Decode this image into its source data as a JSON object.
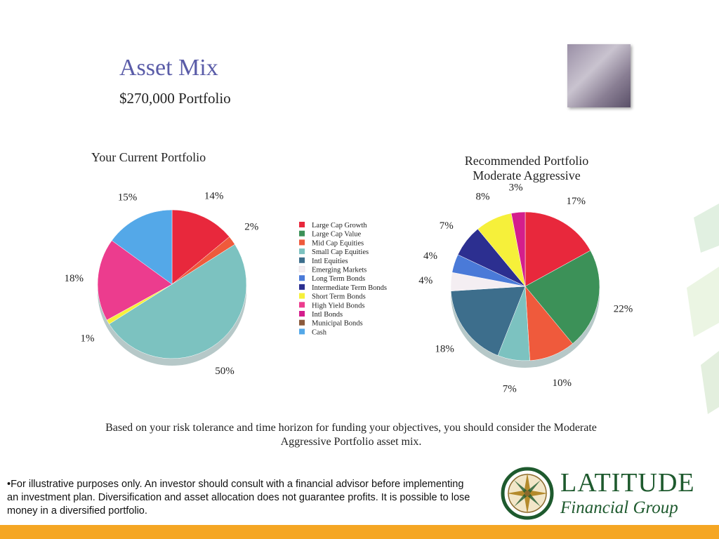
{
  "slide": {
    "title": "Asset Mix",
    "subtitle": "$270,000 Portfolio",
    "conclusion": "Based on your risk tolerance and time horizon for funding your objectives, you should consider the Moderate Aggressive Portfolio asset mix.",
    "disclaimer": "•For illustrative purposes only. An investor should consult with a financial advisor before implementing an investment plan. Diversification and asset allocation does not guarantee profits. It is possible to lose money in a diversified portfolio.",
    "logo_name": "LATITUDE",
    "logo_sub": "Financial Group",
    "accent_color": "#f5a623",
    "brand_color": "#1e5a2e"
  },
  "legend": [
    {
      "label": "Large Cap Growth",
      "color": "#e8283c"
    },
    {
      "label": "Large Cap Value",
      "color": "#3c9158"
    },
    {
      "label": "Mid Cap Equities",
      "color": "#ef5a3c"
    },
    {
      "label": "Small Cap Equities",
      "color": "#7cc2c0"
    },
    {
      "label": "Intl Equities",
      "color": "#3d6e8c"
    },
    {
      "label": "Emerging Markets",
      "color": "#f4eef2"
    },
    {
      "label": "Long Term Bonds",
      "color": "#4a7ad8"
    },
    {
      "label": "Intermediate Term Bonds",
      "color": "#2c2f90"
    },
    {
      "label": "Short Term Bonds",
      "color": "#f6f03a"
    },
    {
      "label": "High Yield Bonds",
      "color": "#ec3c8e"
    },
    {
      "label": "Intl Bonds",
      "color": "#d41e8c"
    },
    {
      "label": "Municipal Bonds",
      "color": "#8c5a3c"
    },
    {
      "label": "Cash",
      "color": "#54a8e8"
    }
  ],
  "chart_data": [
    {
      "type": "pie",
      "title": "Your Current Portfolio",
      "slices": [
        {
          "label": "Large Cap Growth",
          "value": 14,
          "text": "14%"
        },
        {
          "label": "Mid Cap Equities",
          "value": 2,
          "text": "2%"
        },
        {
          "label": "Small Cap Equities",
          "value": 50,
          "text": "50%"
        },
        {
          "label": "Short Term Bonds",
          "value": 1,
          "text": "1%"
        },
        {
          "label": "High Yield Bonds",
          "value": 18,
          "text": "18%"
        },
        {
          "label": "Cash",
          "value": 15,
          "text": "15%"
        }
      ]
    },
    {
      "type": "pie",
      "title": "Recommended Portfolio",
      "subtitle": "Moderate Aggressive",
      "slices": [
        {
          "label": "Large Cap Growth",
          "value": 17,
          "text": "17%"
        },
        {
          "label": "Large Cap Value",
          "value": 22,
          "text": "22%"
        },
        {
          "label": "Mid Cap Equities",
          "value": 10,
          "text": "10%"
        },
        {
          "label": "Small Cap Equities",
          "value": 7,
          "text": "7%"
        },
        {
          "label": "Intl Equities",
          "value": 18,
          "text": "18%"
        },
        {
          "label": "Emerging Markets",
          "value": 4,
          "text": "4%"
        },
        {
          "label": "Long Term Bonds",
          "value": 4,
          "text": "4%"
        },
        {
          "label": "Intermediate Term Bonds",
          "value": 7,
          "text": "7%"
        },
        {
          "label": "Short Term Bonds",
          "value": 8,
          "text": "8%"
        },
        {
          "label": "Intl Bonds",
          "value": 3,
          "text": "3%"
        }
      ]
    }
  ]
}
